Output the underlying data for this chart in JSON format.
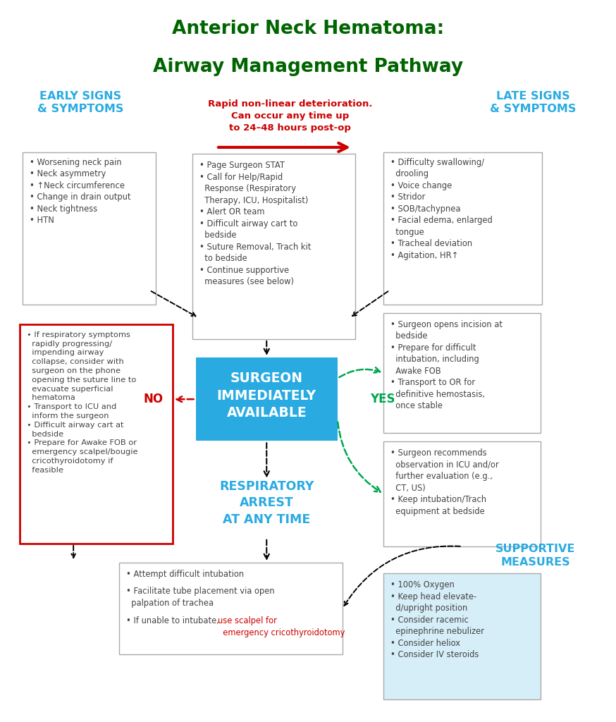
{
  "title_line1": "Anterior Neck Hematoma:",
  "title_line2": "Airway Management Pathway",
  "title_color": "#006400",
  "early_signs_title": "EARLY SIGNS\n& SYMPTOMS",
  "late_signs_title": "LATE SIGNS\n& SYMPTOMS",
  "supportive_title": "SUPPORTIVE\nMEASURES",
  "cyan_color": "#29ABE2",
  "red_color": "#CC0000",
  "green_arrow": "#00A651",
  "rapid_text": "Rapid non-linear deterioration.\nCan occur any time up\nto 24–48 hours post-op",
  "initial_actions": "• Page Surgeon STAT\n• Call for Help/Rapid\n  Response (Respiratory\n  Therapy, ICU, Hospitalist)\n• Alert OR team\n• Difficult airway cart to\n  bedside\n• Suture Removal, Trach kit\n  to bedside\n• Continue supportive\n  measures (see below)",
  "early_symptoms": "• Worsening neck pain\n• Neck asymmetry\n• ↑Neck circumference\n• Change in drain output\n• Neck tightness\n• HTN",
  "late_symptoms": "• Difficulty swallowing/\n  drooling\n• Voice change\n• Stridor\n• SOB/tachypnea\n• Facial edema, enlarged\n  tongue\n• Tracheal deviation\n• Agitation, HR↑",
  "surgeon_available_text": "SURGEON\nIMMEDIATELY\nAVAILABLE",
  "resp_arrest_text": "RESPIRATORY\nARREST\nAT ANY TIME",
  "yes_upper_actions": "• Surgeon opens incision at\n  bedside\n• Prepare for difficult\n  intubation, including\n  Awake FOB\n• Transport to OR for\n  definitive hemostasis,\n  once stable",
  "no_actions": "• If respiratory symptoms\n  rapidly progressing/\n  impending airway\n  collapse, consider with\n  surgeon on the phone\n  opening the suture line to\n  evacuate superficial\n  hematoma\n• Transport to ICU and\n  inform the surgeon\n• Difficult airway cart at\n  bedside\n• Prepare for Awake FOB or\n  emergency scalpel/bougie\n  cricothyroidotomy if\n  feasible",
  "obs_actions": "• Surgeon recommends\n  observation in ICU and/or\n  further evaluation (e.g.,\n  CT, US)\n• Keep intubation/Trach\n  equipment at bedside",
  "bottom_line1": "• Attempt difficult intubation",
  "bottom_line2": "• Facilitate tube placement via open\n  palpation of trachea",
  "bottom_line3_black": "• If unable to intubate, ",
  "bottom_line3_red": "use scalpel for\n  emergency cricothyroidotomy",
  "supportive_measures": "• 100% Oxygen\n• Keep head elevate-\n  d/upright position\n• Consider racemic\n  epinephrine nebulizer\n• Consider heliox\n• Consider IV steroids",
  "box_bg_light_blue": "#D6EEF8"
}
